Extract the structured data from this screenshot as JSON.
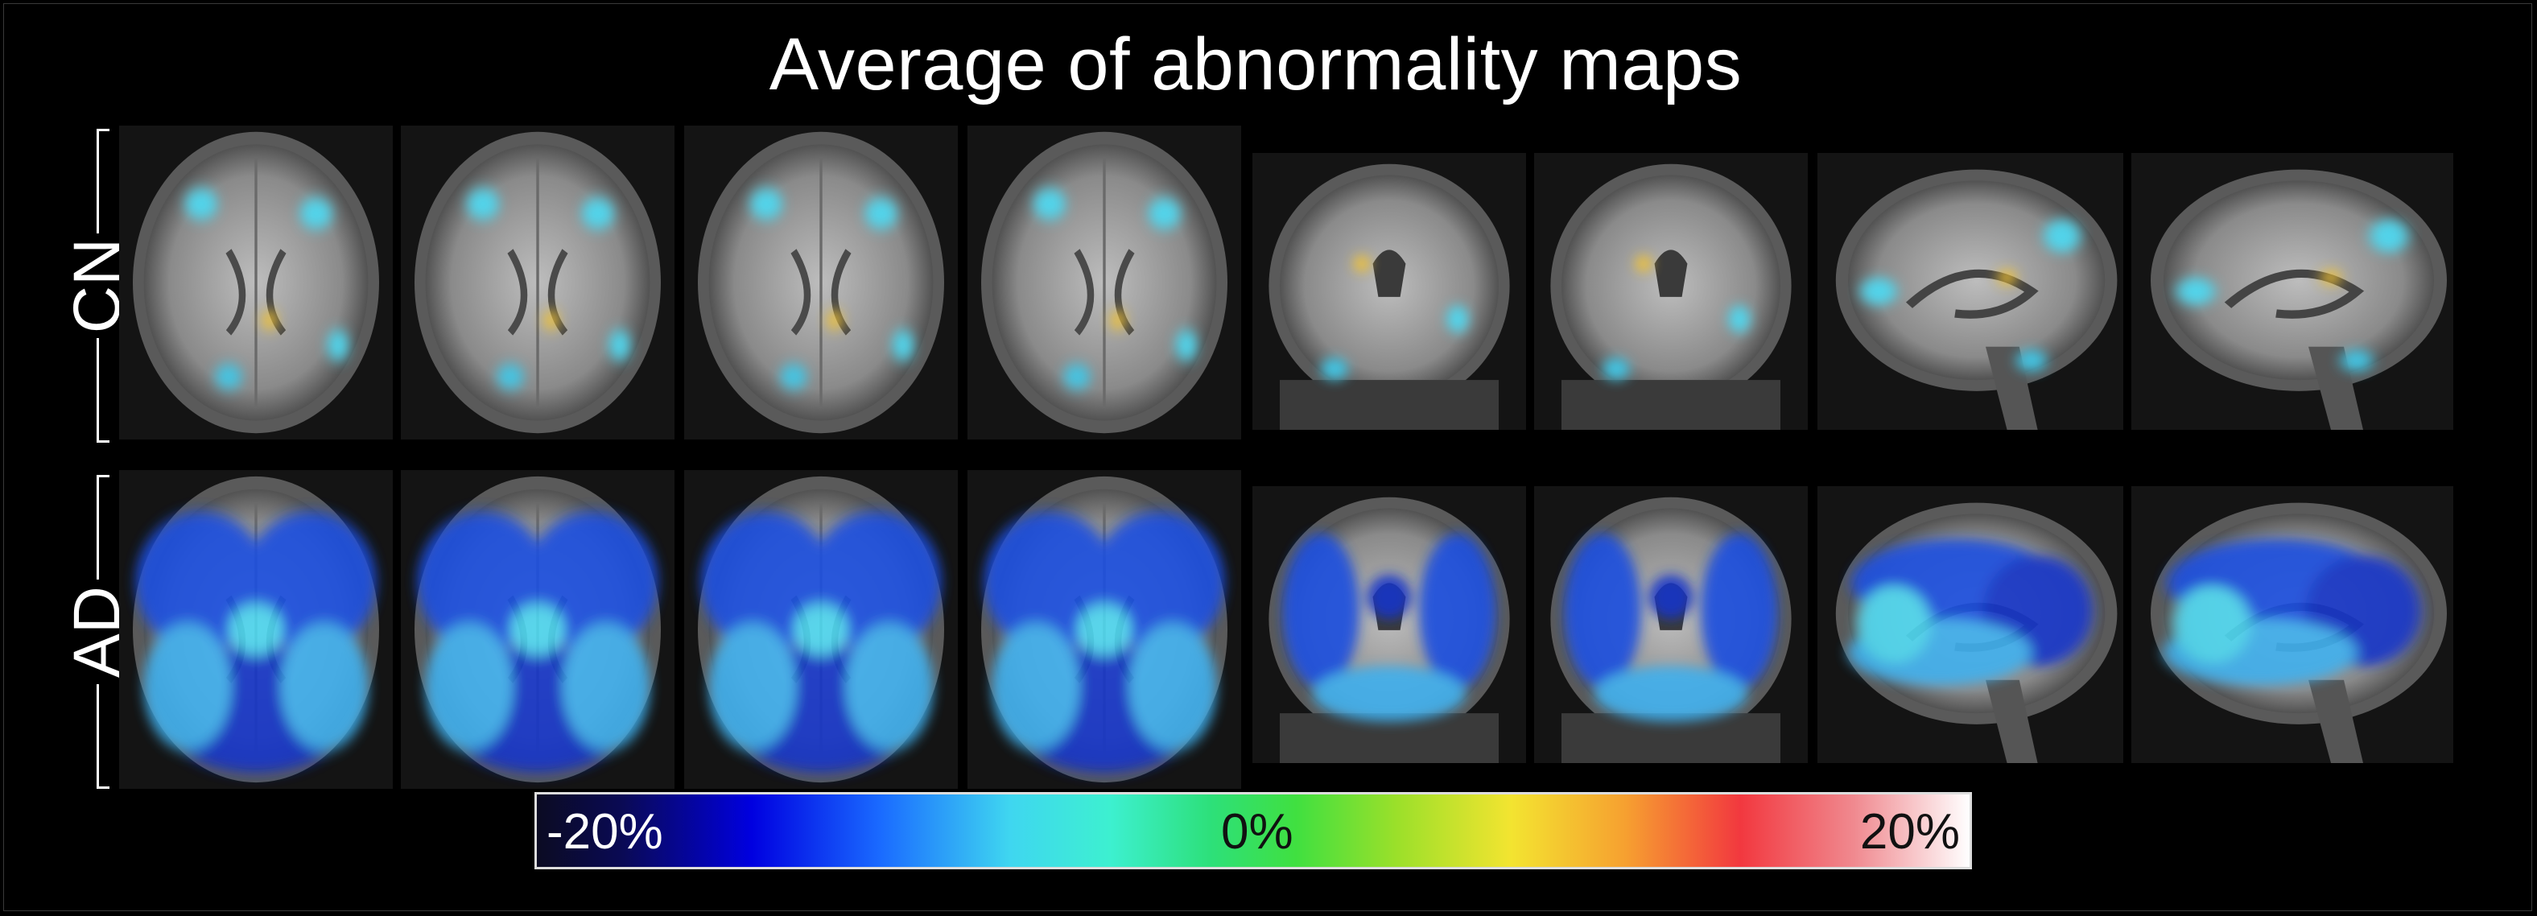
{
  "title": "Average of abnormality maps",
  "rows": {
    "cn": {
      "label": "CN"
    },
    "ad": {
      "label": "AD"
    }
  },
  "views": [
    "axial",
    "axial",
    "axial",
    "axial",
    "coronal",
    "coronal",
    "sagittal",
    "sagittal"
  ],
  "colorbar": {
    "min_label": "-20%",
    "mid_label": "0%",
    "max_label": "20%",
    "colors": [
      "#0b0b22",
      "#0000e0",
      "#3fd6f0",
      "#40e040",
      "#f3e430",
      "#f2383f",
      "#ffffff"
    ]
  }
}
